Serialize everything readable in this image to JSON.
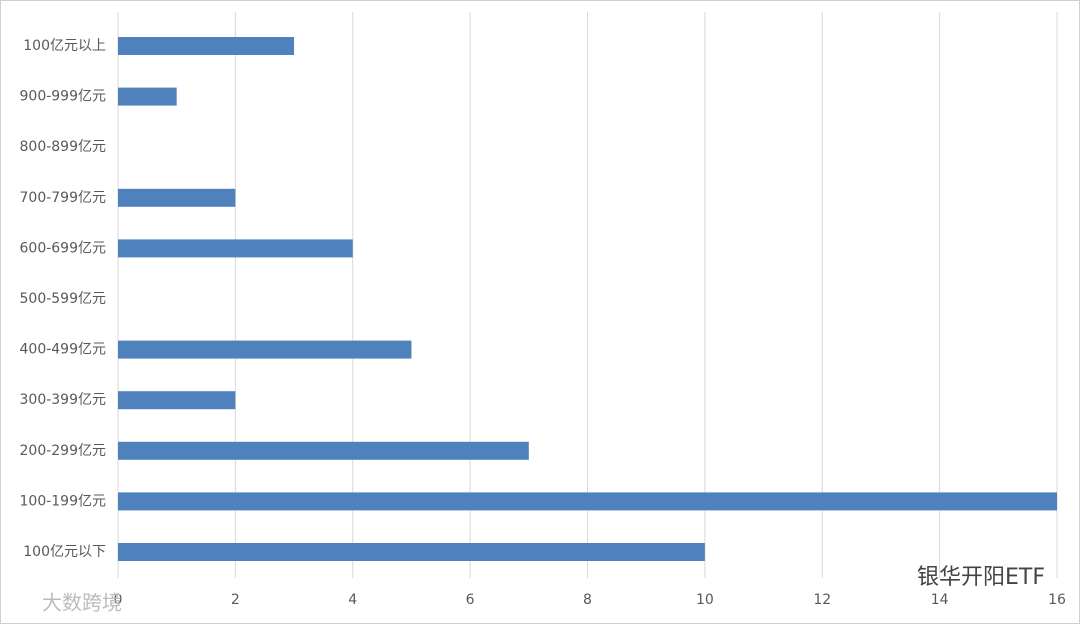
{
  "chart_data": {
    "type": "barh",
    "categories": [
      "100亿元以上",
      "900-999亿元",
      "800-899亿元",
      "700-799亿元",
      "600-699亿元",
      "500-599亿元",
      "400-499亿元",
      "300-399亿元",
      "200-299亿元",
      "100-199亿元",
      "100亿元以下"
    ],
    "values": [
      3,
      1,
      0,
      2,
      4,
      0,
      5,
      2,
      7,
      16,
      10
    ],
    "color": "#4f81bd",
    "xlim": [
      0,
      16
    ],
    "xticks": [
      0,
      2,
      4,
      6,
      8,
      10,
      12,
      14,
      16
    ],
    "grid": true
  },
  "watermarks": [
    "银华开阳ETF",
    "大数跨境"
  ]
}
